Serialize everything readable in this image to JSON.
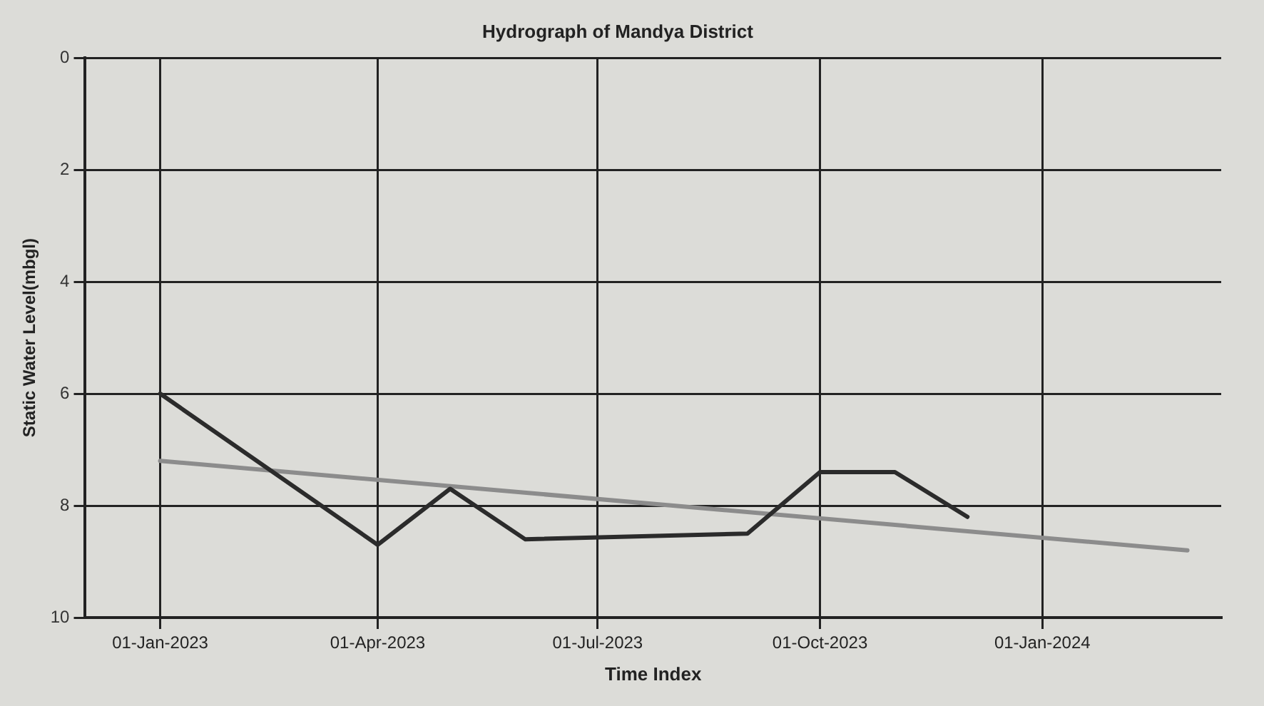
{
  "chart_data": {
    "type": "line",
    "title": "Hydrograph of Mandya District",
    "xlabel": "Time Index",
    "ylabel": "Static Water Level(mbgl)",
    "series": [
      {
        "color": "#2b2b2b",
        "x": [
          "2023-01-01",
          "2023-04-01",
          "2023-05-01",
          "2023-06-01",
          "2023-09-01",
          "2023-10-01",
          "2023-11-01",
          "2023-12-01"
        ],
        "values": [
          6.0,
          8.7,
          7.7,
          8.6,
          8.5,
          7.4,
          7.4,
          8.2
        ]
      },
      {
        "type": "line",
        "color": "#8c8c8c",
        "x": [
          "2023-01-01",
          "2024-03-01"
        ],
        "values": [
          7.2,
          8.8
        ]
      }
    ],
    "xlim": [
      "2022-12-01",
      "2024-03-15"
    ],
    "xticks": [
      {
        "value": "2023-01-01",
        "label": "01-Jan-2023"
      },
      {
        "value": "2023-04-01",
        "label": "01-Apr-2023"
      },
      {
        "value": "2023-07-01",
        "label": "01-Jul-2023"
      },
      {
        "value": "2023-10-01",
        "label": "01-Oct-2023"
      },
      {
        "value": "2024-01-01",
        "label": "01-Jan-2024"
      }
    ],
    "ylim": [
      10,
      0
    ],
    "yticks": [
      0,
      2,
      4,
      6,
      8,
      10
    ],
    "grid": true,
    "legend": false,
    "marker": "none",
    "line_style": "solid"
  }
}
